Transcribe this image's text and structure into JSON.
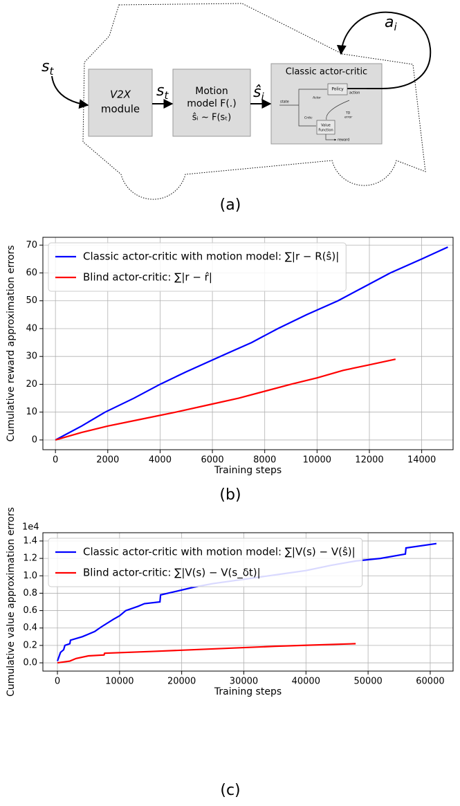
{
  "diagram": {
    "input_state": {
      "base": "s",
      "sub": "t"
    },
    "v2x_box": [
      "V2X",
      "module"
    ],
    "state_arrow": {
      "base": "s",
      "sub": "t"
    },
    "motion_box": [
      "Motion",
      "model F(.)",
      "ŝᵢ ~ F(sₜ)"
    ],
    "estimate_arrow": {
      "base": "ŝ",
      "sub": "i"
    },
    "actor_critic": {
      "title": "Classic actor-critic",
      "policy": "Policy",
      "action": "action",
      "actor": "Actor",
      "state": "state",
      "critic": "Critic",
      "td_error": [
        "TD",
        "error"
      ],
      "value_function": [
        "Value",
        "Function"
      ],
      "reward": "reward"
    },
    "action": {
      "base": "a",
      "sub": "i"
    },
    "caption": "(a)"
  },
  "chart_data": [
    {
      "type": "line",
      "caption": "(b)",
      "x_label": "Training steps",
      "y_label": "Cumulative reward approximation errors",
      "xlim": [
        -480,
        15200
      ],
      "ylim": [
        -3.5,
        72.8
      ],
      "xticks": [
        0,
        2000,
        4000,
        6000,
        8000,
        10000,
        12000,
        14000
      ],
      "yticks": [
        0,
        10,
        20,
        30,
        40,
        50,
        60,
        70
      ],
      "grid": true,
      "legend": "upper left",
      "series": [
        {
          "name": "Classic actor-critic with motion model: ∑|r − R(ŝ)|",
          "color": "#0000ff",
          "x": [
            0,
            500,
            1000,
            1900,
            3000,
            4000,
            5000,
            6300,
            7500,
            8500,
            9600,
            10800,
            11800,
            12800,
            14000,
            15000
          ],
          "values": [
            0,
            2.5,
            5,
            10,
            15,
            20,
            24.5,
            30,
            35,
            40,
            45,
            50,
            55,
            60,
            65,
            69.3
          ]
        },
        {
          "name": "Blind actor-critic: ∑|r − r̂|",
          "color": "#ff0000",
          "x": [
            0,
            1000,
            2000,
            3300,
            4600,
            5800,
            7000,
            8000,
            9000,
            10000,
            11000,
            12000,
            13000
          ],
          "values": [
            0,
            2.7,
            5,
            7.5,
            10,
            12.5,
            15,
            17.5,
            20,
            22.3,
            25,
            27,
            29
          ]
        }
      ]
    },
    {
      "type": "line",
      "caption": "(c)",
      "x_label": "Training steps",
      "y_label": "Cumulative value approximation errors",
      "y_offset_label": "1e4",
      "xlim": [
        -2340,
        63680
      ],
      "ylim": [
        -0.095,
        1.495
      ],
      "xticks": [
        0,
        10000,
        20000,
        30000,
        40000,
        50000,
        60000
      ],
      "yticks": [
        {
          "value": 0,
          "label": "0.0"
        },
        0.2,
        0.4,
        0.6,
        0.8,
        {
          "value": 1,
          "label": "1.0"
        },
        1.2,
        1.4
      ],
      "grid": true,
      "legend": "upper left",
      "series": [
        {
          "name": "Classic actor-critic with motion model: ∑|V(s) − V(ŝ)|",
          "color": "#0000ff",
          "x": [
            0,
            500,
            1000,
            1200,
            2000,
            2100,
            4000,
            6000,
            7000,
            9000,
            10000,
            11000,
            13000,
            14000,
            16500,
            16600,
            19000,
            22000,
            25000,
            28000,
            32000,
            36000,
            40000,
            44000,
            48000,
            52000,
            56000,
            56100,
            61000
          ],
          "values": [
            0.02,
            0.12,
            0.15,
            0.2,
            0.22,
            0.26,
            0.3,
            0.36,
            0.41,
            0.5,
            0.54,
            0.6,
            0.65,
            0.68,
            0.7,
            0.78,
            0.82,
            0.87,
            0.91,
            0.94,
            0.98,
            1.02,
            1.06,
            1.12,
            1.17,
            1.2,
            1.25,
            1.32,
            1.37
          ]
        },
        {
          "name": "Blind actor-critic: ∑|V(s) − V(s_δt)|",
          "color": "#ff0000",
          "x": [
            0,
            2000,
            3000,
            5000,
            7500,
            7600,
            15000,
            25000,
            35000,
            48000
          ],
          "values": [
            0,
            0.02,
            0.05,
            0.08,
            0.09,
            0.11,
            0.13,
            0.16,
            0.19,
            0.22
          ]
        }
      ]
    }
  ]
}
